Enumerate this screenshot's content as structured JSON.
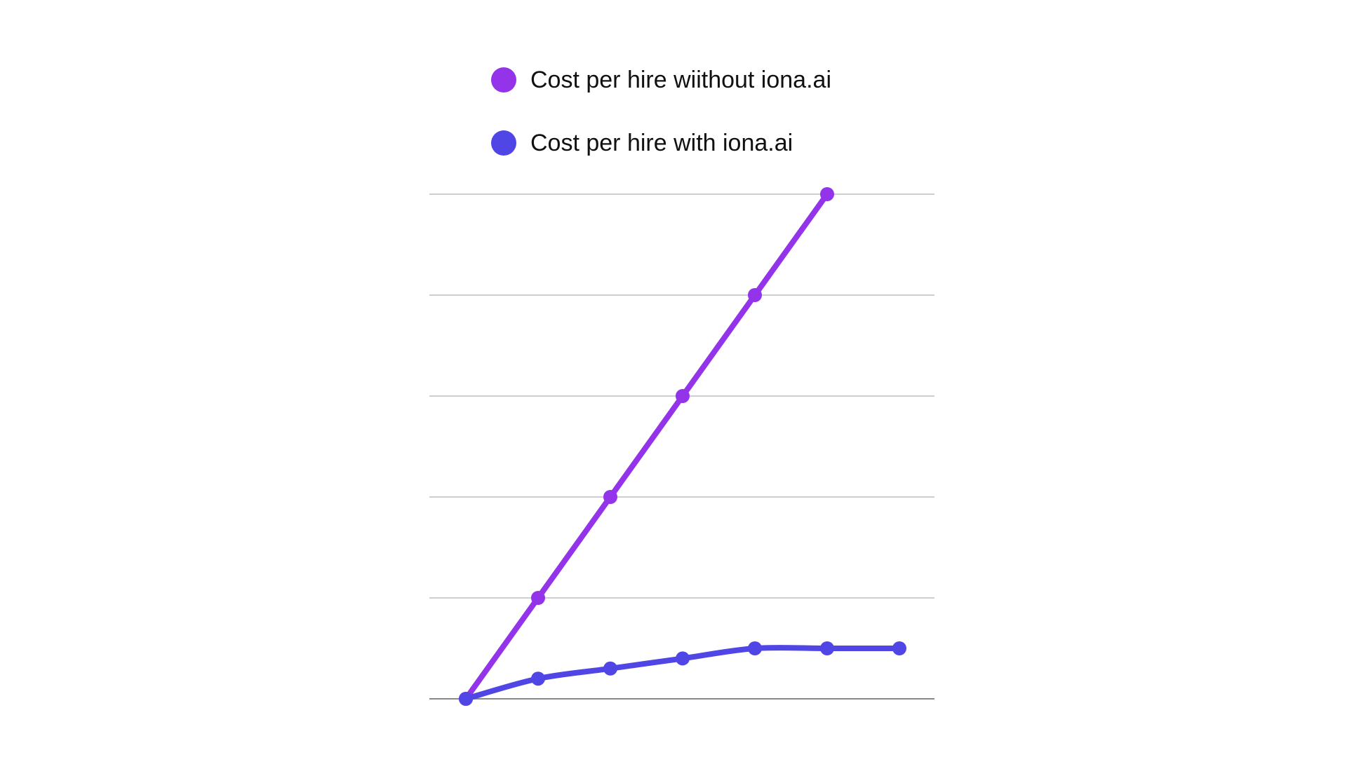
{
  "chart_data": {
    "type": "line",
    "title": "",
    "xlabel": "",
    "ylabel": "",
    "x": [
      0,
      1,
      2,
      3,
      4,
      5,
      6
    ],
    "ylim": [
      0,
      5
    ],
    "ygrid": [
      0,
      1,
      2,
      3,
      4,
      5
    ],
    "grid": true,
    "legend_position": "top",
    "series": [
      {
        "name": "Cost per hire wiithout iona.ai",
        "color": "#9333ea",
        "values": [
          0,
          1,
          2,
          3,
          4,
          5,
          null
        ]
      },
      {
        "name": "Cost per hire with iona.ai",
        "color": "#4f46e5",
        "values": [
          0,
          0.2,
          0.3,
          0.4,
          0.5,
          0.5,
          0.5
        ]
      }
    ]
  }
}
